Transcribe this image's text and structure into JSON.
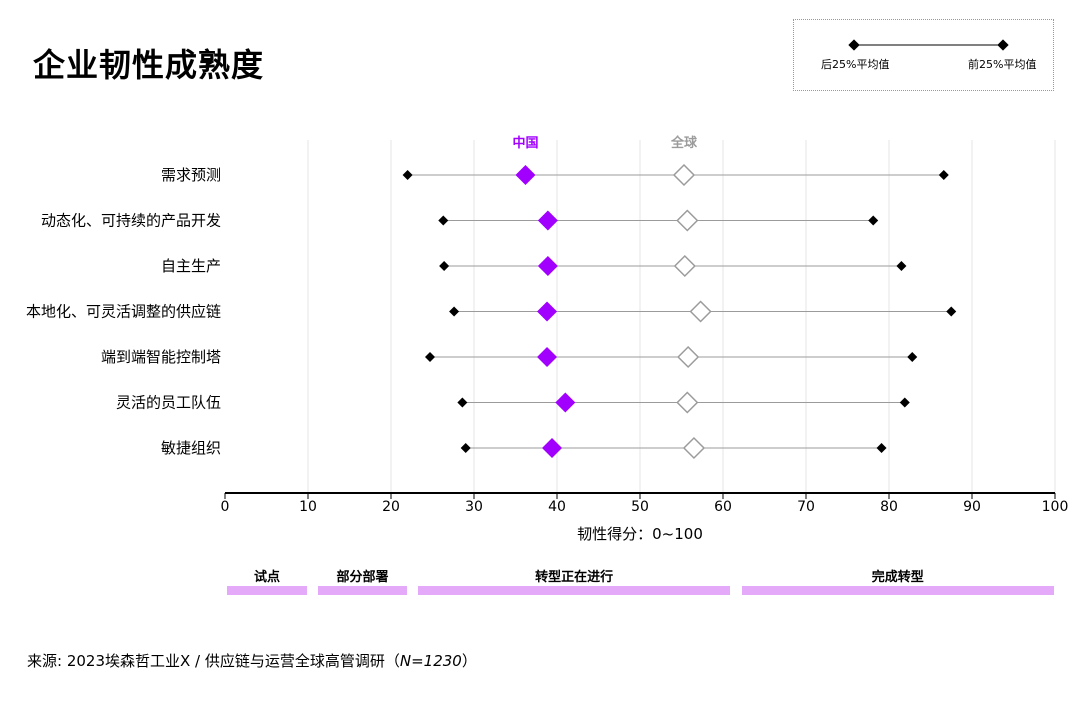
{
  "title": "企业韧性成熟度",
  "legend": {
    "bottom_label": "后25%平均值",
    "top_label": "前25%平均值"
  },
  "series_labels": {
    "china": "中国",
    "global": "全球"
  },
  "colors": {
    "china": "#a100ff",
    "global_stroke": "#9b9b9b",
    "range_line": "#9b9b9b",
    "endpoint": "#000000",
    "stage_bar": "#e4aaf9",
    "grid": "#e6e6e6"
  },
  "chart_data": {
    "type": "scatter",
    "xlabel": "韧性得分：0~100",
    "xlim": [
      0,
      100
    ],
    "xticks": [
      0,
      10,
      20,
      30,
      40,
      50,
      60,
      70,
      80,
      90,
      100
    ],
    "grid": true,
    "legend_position": "top-right",
    "categories": [
      "需求预测",
      "动态化、可持续的产品开发",
      "自主生产",
      "本地化、可灵活调整的供应链",
      "端到端智能控制塔",
      "灵活的员工队伍",
      "敏捷组织"
    ],
    "series": [
      {
        "name": "后25%平均值",
        "values": [
          22.0,
          26.3,
          26.4,
          27.6,
          24.7,
          28.6,
          29.0
        ]
      },
      {
        "name": "中国",
        "values": [
          36.2,
          38.9,
          38.9,
          38.8,
          38.8,
          41.0,
          39.4
        ]
      },
      {
        "name": "全球",
        "values": [
          55.3,
          55.7,
          55.4,
          57.3,
          55.8,
          55.7,
          56.5
        ]
      },
      {
        "name": "前25%平均值",
        "values": [
          86.6,
          78.1,
          81.5,
          87.5,
          82.8,
          81.9,
          79.1
        ]
      }
    ],
    "stages": [
      {
        "label": "试点",
        "from": 0,
        "to": 10
      },
      {
        "label": "部分部署",
        "from": 11,
        "to": 22
      },
      {
        "label": "转型正在进行",
        "from": 23,
        "to": 61
      },
      {
        "label": "完成转型",
        "from": 62,
        "to": 100
      }
    ]
  },
  "source": {
    "prefix": "来源: 2023埃森哲工业X / 供应链与运营全球高管调研（",
    "italic": "N=1230",
    "suffix": "）"
  }
}
